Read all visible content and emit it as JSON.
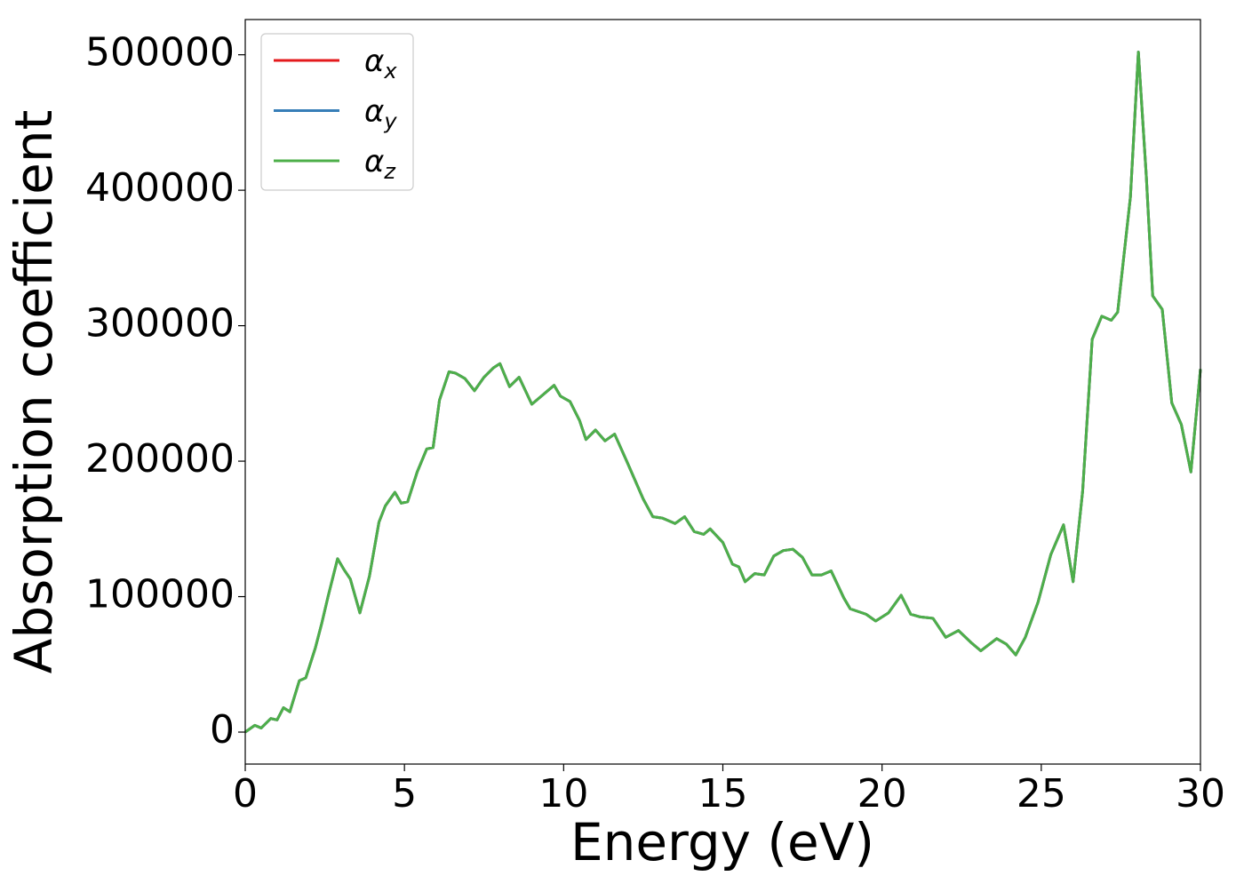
{
  "chart_data": {
    "type": "line",
    "xlabel": "Energy (eV)",
    "ylabel": "Absorption coefficient",
    "x": [
      0,
      0.3,
      0.5,
      0.8,
      1.0,
      1.2,
      1.4,
      1.7,
      1.9,
      2.2,
      2.4,
      2.6,
      2.9,
      3.1,
      3.3,
      3.6,
      3.9,
      4.2,
      4.4,
      4.7,
      4.9,
      5.1,
      5.4,
      5.7,
      5.9,
      6.1,
      6.4,
      6.6,
      6.9,
      7.2,
      7.5,
      7.8,
      8.0,
      8.3,
      8.6,
      9.0,
      9.3,
      9.7,
      9.9,
      10.2,
      10.5,
      10.7,
      11.0,
      11.3,
      11.6,
      12.0,
      12.5,
      12.8,
      13.1,
      13.5,
      13.8,
      14.1,
      14.4,
      14.6,
      15.0,
      15.3,
      15.5,
      15.7,
      16.0,
      16.3,
      16.6,
      16.9,
      17.2,
      17.5,
      17.8,
      18.1,
      18.4,
      18.8,
      19.0,
      19.5,
      19.8,
      20.2,
      20.6,
      20.9,
      21.2,
      21.6,
      22.0,
      22.4,
      22.8,
      23.1,
      23.6,
      23.9,
      24.2,
      24.5,
      24.9,
      25.3,
      25.7,
      26.0,
      26.3,
      26.6,
      26.9,
      27.2,
      27.4,
      27.8,
      28.05,
      28.3,
      28.5,
      28.8,
      29.1,
      29.4,
      29.7,
      30.0
    ],
    "series": [
      {
        "name": "αx",
        "color": "#e41a1c",
        "values": [
          0,
          5000,
          3000,
          10000,
          9000,
          18000,
          15000,
          38000,
          40000,
          62000,
          80000,
          100000,
          128000,
          120000,
          113000,
          88000,
          115000,
          155000,
          167000,
          177000,
          169000,
          170000,
          192000,
          209000,
          210000,
          245000,
          266000,
          265000,
          261000,
          252000,
          262000,
          269000,
          272000,
          255000,
          262000,
          242000,
          248000,
          256000,
          248000,
          244000,
          230000,
          216000,
          223000,
          215000,
          220000,
          199000,
          172000,
          159000,
          158000,
          154000,
          159000,
          148000,
          146000,
          150000,
          140000,
          124000,
          122000,
          111000,
          117000,
          116000,
          130000,
          134000,
          135000,
          129000,
          116000,
          116000,
          119000,
          99000,
          91000,
          87000,
          82000,
          88000,
          101000,
          87000,
          85000,
          84000,
          70000,
          75000,
          66000,
          60000,
          69000,
          65000,
          57000,
          70000,
          96000,
          131000,
          153000,
          111000,
          178000,
          290000,
          307000,
          304000,
          310000,
          395000,
          502000,
          410000,
          322000,
          312000,
          243000,
          227000,
          192000,
          268000
        ]
      },
      {
        "name": "αy",
        "color": "#377eb8",
        "values": [
          0,
          5000,
          3000,
          10000,
          9000,
          18000,
          15000,
          38000,
          40000,
          62000,
          80000,
          100000,
          128000,
          120000,
          113000,
          88000,
          115000,
          155000,
          167000,
          177000,
          169000,
          170000,
          192000,
          209000,
          210000,
          245000,
          266000,
          265000,
          261000,
          252000,
          262000,
          269000,
          272000,
          255000,
          262000,
          242000,
          248000,
          256000,
          248000,
          244000,
          230000,
          216000,
          223000,
          215000,
          220000,
          199000,
          172000,
          159000,
          158000,
          154000,
          159000,
          148000,
          146000,
          150000,
          140000,
          124000,
          122000,
          111000,
          117000,
          116000,
          130000,
          134000,
          135000,
          129000,
          116000,
          116000,
          119000,
          99000,
          91000,
          87000,
          82000,
          88000,
          101000,
          87000,
          85000,
          84000,
          70000,
          75000,
          66000,
          60000,
          69000,
          65000,
          57000,
          70000,
          96000,
          131000,
          153000,
          111000,
          178000,
          290000,
          307000,
          304000,
          310000,
          395000,
          502000,
          410000,
          322000,
          312000,
          243000,
          227000,
          192000,
          268000
        ]
      },
      {
        "name": "αz",
        "color": "#4daf4a",
        "values": [
          0,
          5000,
          3000,
          10000,
          9000,
          18000,
          15000,
          38000,
          40000,
          62000,
          80000,
          100000,
          128000,
          120000,
          113000,
          88000,
          115000,
          155000,
          167000,
          177000,
          169000,
          170000,
          192000,
          209000,
          210000,
          245000,
          266000,
          265000,
          261000,
          252000,
          262000,
          269000,
          272000,
          255000,
          262000,
          242000,
          248000,
          256000,
          248000,
          244000,
          230000,
          216000,
          223000,
          215000,
          220000,
          199000,
          172000,
          159000,
          158000,
          154000,
          159000,
          148000,
          146000,
          150000,
          140000,
          124000,
          122000,
          111000,
          117000,
          116000,
          130000,
          134000,
          135000,
          129000,
          116000,
          116000,
          119000,
          99000,
          91000,
          87000,
          82000,
          88000,
          101000,
          87000,
          85000,
          84000,
          70000,
          75000,
          66000,
          60000,
          69000,
          65000,
          57000,
          70000,
          96000,
          131000,
          153000,
          111000,
          178000,
          290000,
          307000,
          304000,
          310000,
          395000,
          502000,
          410000,
          322000,
          312000,
          243000,
          227000,
          192000,
          268000
        ]
      }
    ],
    "xlim": [
      0,
      30
    ],
    "xticks": [
      0,
      5,
      10,
      15,
      20,
      25,
      30
    ],
    "ylim": [
      -23600,
      526000
    ],
    "yticks": [
      0,
      100000,
      200000,
      300000,
      400000,
      500000
    ],
    "grid": false,
    "legend": "upper left"
  }
}
